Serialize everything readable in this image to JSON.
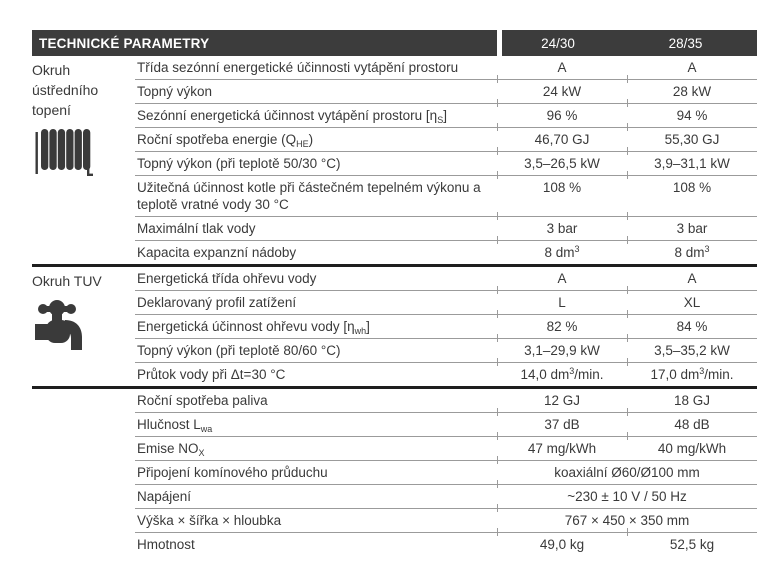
{
  "header": {
    "title": "TECHNICKÉ PARAMETRY",
    "columns": [
      "24/30",
      "28/35"
    ]
  },
  "colors": {
    "header_bg": "#3c3c3c",
    "header_text": "#ffffff",
    "body_text": "#3a3a3a",
    "row_line": "#9b9b9b",
    "section_divider": "#1e1e1e"
  },
  "sections": [
    {
      "label": "Okruh ústředního topení",
      "icon": "radiator-icon",
      "rows": [
        {
          "label": [
            "Třída sezónní energetické účinnosti vytápění prostoru"
          ],
          "values": [
            [
              "A"
            ],
            [
              "A"
            ]
          ]
        },
        {
          "label": [
            "Topný výkon"
          ],
          "values": [
            [
              "24 kW"
            ],
            [
              "28 kW"
            ]
          ]
        },
        {
          "label": [
            "Sezónní energetická účinnost vytápění prostoru [η",
            {
              "t": "S",
              "m": "sub"
            },
            "]"
          ],
          "values": [
            [
              "96 %"
            ],
            [
              "94 %"
            ]
          ]
        },
        {
          "label": [
            "Roční spotřeba energie (Q",
            {
              "t": "HE",
              "m": "sub"
            },
            ")"
          ],
          "values": [
            [
              "46,70 GJ"
            ],
            [
              "55,30 GJ"
            ]
          ]
        },
        {
          "label": [
            "Topný výkon (při teplotě 50/30 °C)"
          ],
          "values": [
            [
              "3,5–26,5 kW"
            ],
            [
              "3,9–31,1 kW"
            ]
          ]
        },
        {
          "label": [
            "Užitečná účinnost kotle při částečném tepelném výkonu a teplotě vratné vody 30 °C"
          ],
          "values": [
            [
              "108 %"
            ],
            [
              "108 %"
            ]
          ]
        },
        {
          "label": [
            "Maximální tlak vody"
          ],
          "values": [
            [
              "3 bar"
            ],
            [
              "3 bar"
            ]
          ]
        },
        {
          "label": [
            "Kapacita expanzní nádoby"
          ],
          "values": [
            [
              "8 dm",
              {
                "t": "3",
                "m": "sup"
              }
            ],
            [
              "8 dm",
              {
                "t": "3",
                "m": "sup"
              }
            ]
          ]
        }
      ]
    },
    {
      "label": "Okruh TUV",
      "icon": "faucet-icon",
      "rows": [
        {
          "label": [
            "Energetická třída ohřevu vody"
          ],
          "values": [
            [
              "A"
            ],
            [
              "A"
            ]
          ]
        },
        {
          "label": [
            "Deklarovaný profil zatížení"
          ],
          "values": [
            [
              "L"
            ],
            [
              "XL"
            ]
          ]
        },
        {
          "label": [
            "Energetická účinnost ohřevu vody [η",
            {
              "t": "wh",
              "m": "sub"
            },
            "]"
          ],
          "values": [
            [
              "82 %"
            ],
            [
              "84 %"
            ]
          ]
        },
        {
          "label": [
            "Topný výkon (při teplotě 80/60 °C)"
          ],
          "values": [
            [
              "3,1–29,9 kW"
            ],
            [
              "3,5–35,2 kW"
            ]
          ]
        },
        {
          "label": [
            "Průtok vody při Δt=30 °C"
          ],
          "values": [
            [
              "14,0 dm",
              {
                "t": "3",
                "m": "sup"
              },
              "/min."
            ],
            [
              "17,0 dm",
              {
                "t": "3",
                "m": "sup"
              },
              "/min."
            ]
          ]
        }
      ]
    },
    {
      "label": "",
      "icon": null,
      "rows": [
        {
          "label": [
            "Roční spotřeba paliva"
          ],
          "values": [
            [
              "12 GJ"
            ],
            [
              "18 GJ"
            ]
          ]
        },
        {
          "label": [
            "Hlučnost L",
            {
              "t": "wa",
              "m": "sub"
            }
          ],
          "values": [
            [
              "37 dB"
            ],
            [
              "48 dB"
            ]
          ]
        },
        {
          "label": [
            "Emise NO",
            {
              "t": "X",
              "m": "sub"
            }
          ],
          "values": [
            [
              "47 mg/kWh"
            ],
            [
              "40 mg/kWh"
            ]
          ]
        },
        {
          "label": [
            "Připojení komínového průduchu"
          ],
          "span": true,
          "values": [
            [
              "koaxiální Ø60/Ø100 mm"
            ]
          ]
        },
        {
          "label": [
            "Napájení"
          ],
          "span": true,
          "values": [
            [
              "~230 ± 10 V / 50 Hz"
            ]
          ]
        },
        {
          "label": [
            "Výška × šířka × hloubka"
          ],
          "span": true,
          "values": [
            [
              "767 × 450 × 350 mm"
            ]
          ]
        },
        {
          "label": [
            "Hmotnost"
          ],
          "values": [
            [
              "49,0 kg"
            ],
            [
              "52,5 kg"
            ]
          ]
        }
      ]
    }
  ]
}
